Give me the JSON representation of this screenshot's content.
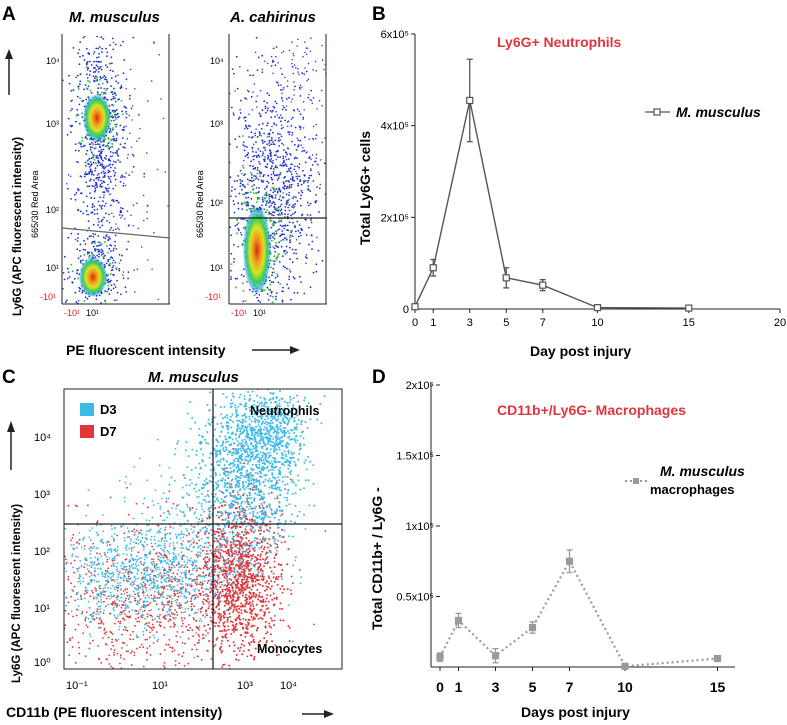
{
  "panel_a": {
    "letter": "A",
    "left_title": "M. musculus",
    "right_title": "A. cahirinus",
    "inner_ylabel": "665/30 Red Area",
    "ylabel": "Ly6G (APC fluorescent intensity)",
    "xlabel": "PE fluorescent intensity",
    "y_ticks": [
      "10⁴",
      "10³",
      "10²",
      "10¹",
      "-10¹"
    ],
    "x_ticks": [
      "-10¹",
      "10¹"
    ]
  },
  "panel_b": {
    "letter": "B"
  },
  "panel_c": {
    "letter": "C",
    "title": "M. musculus",
    "legend": [
      {
        "label": "D3",
        "color": "#3bbbe8"
      },
      {
        "label": "D7",
        "color": "#e0353b"
      }
    ],
    "quadrant_labels": {
      "upper_right": "Neutrophils",
      "lower_right": "Monocytes"
    },
    "ylabel": "Ly6G (APC fluorescent intensity)",
    "xlabel": "CD11b (PE fluorescent intensity)",
    "y_ticks": [
      "10⁴",
      "10³",
      "10²",
      "10¹",
      "10⁰"
    ],
    "x_ticks": [
      "10⁻¹",
      "10¹",
      "10³",
      "10⁴"
    ]
  },
  "panel_d": {
    "letter": "D"
  },
  "chart_data": [
    {
      "id": "B",
      "type": "line",
      "title": "Ly6G+ Neutrophils",
      "xlabel": "Day post injury",
      "ylabel": "Total Ly6G+ cells",
      "xlim": [
        0,
        20
      ],
      "ylim": [
        0,
        600000
      ],
      "x_ticks": [
        0,
        1,
        3,
        5,
        7,
        10,
        15,
        20
      ],
      "y_ticks": [
        0,
        200000,
        400000,
        600000
      ],
      "y_tick_labels": [
        "0",
        "2x10⁵",
        "4x10⁵",
        "6x10⁵"
      ],
      "series": [
        {
          "name": "M. musculus",
          "color": "#555555",
          "marker": "open-square",
          "x": [
            0,
            1,
            3,
            5,
            7,
            10,
            15
          ],
          "y": [
            5000,
            90000,
            455000,
            68000,
            52000,
            3000,
            2000
          ],
          "err": [
            3000,
            18000,
            90000,
            22000,
            12000,
            2000,
            1500
          ]
        }
      ]
    },
    {
      "id": "D",
      "type": "line",
      "title": "CD11b+/Ly6G- Macrophages",
      "xlabel": "Days post injury",
      "ylabel": "Total CD11b+ / Ly6G -",
      "xlim": [
        0,
        16
      ],
      "ylim": [
        0,
        200000
      ],
      "x_ticks": [
        0,
        1,
        3,
        5,
        7,
        10,
        15
      ],
      "y_ticks": [
        50000,
        100000,
        150000,
        200000
      ],
      "y_tick_labels": [
        "0.5x10⁵",
        "1x10⁵",
        "1.5x10⁵",
        "2x10⁵"
      ],
      "series": [
        {
          "name": "M. musculus",
          "name_line2": "macrophages",
          "color": "#9a9a9a",
          "marker": "filled-square",
          "style": "dotted",
          "x": [
            0,
            1,
            3,
            5,
            7,
            10,
            15
          ],
          "y": [
            7000,
            33000,
            8000,
            28000,
            75000,
            500,
            6000
          ],
          "err": [
            3000,
            5000,
            5000,
            4000,
            8000,
            500,
            1500
          ]
        }
      ]
    }
  ]
}
